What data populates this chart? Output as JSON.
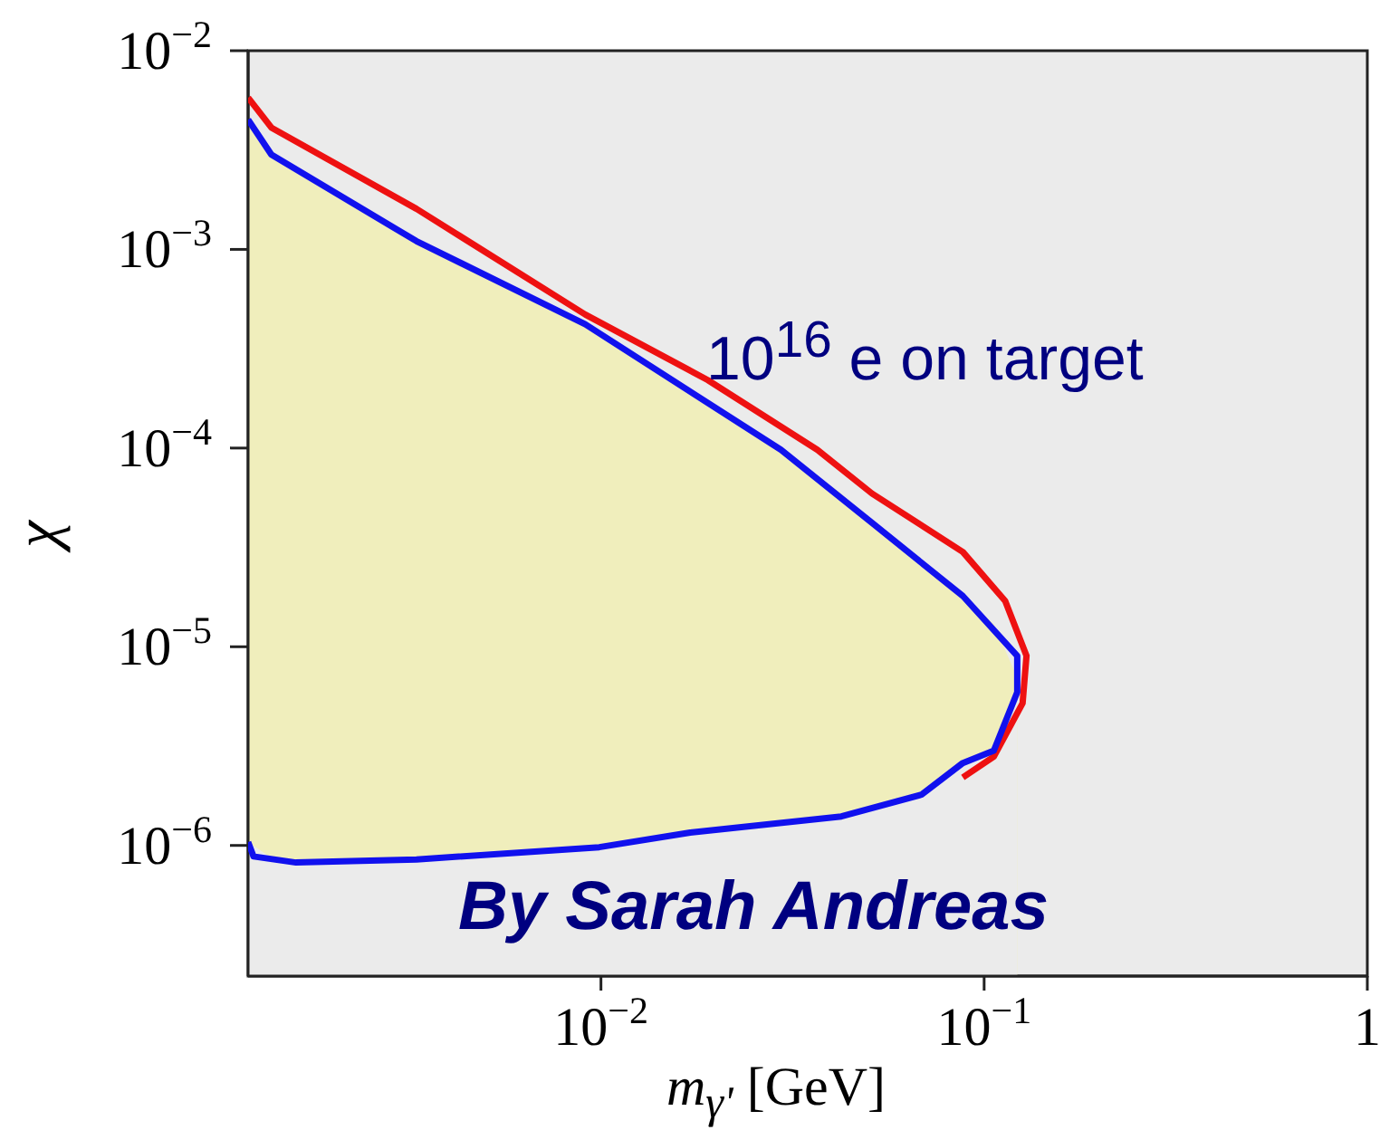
{
  "chart_data": {
    "type": "line",
    "xlabel": "m$_{γ'}$ [GeV]",
    "ylabel": "χ",
    "log": "xy",
    "marker": "none",
    "line_style": "solid",
    "xlim": [
      0.0012,
      1
    ],
    "xticks": [
      {
        "value": 0.01,
        "label": "10$^{−2}$"
      },
      {
        "value": 0.1,
        "label": "10$^{−1}$"
      },
      1
    ],
    "ylim": [
      2.2e-07,
      0.01
    ],
    "yticks": [
      {
        "value": 1e-06,
        "label": "10$^{−6}$"
      },
      {
        "value": 1e-05,
        "label": "10$^{−5}$"
      },
      {
        "value": 0.0001,
        "label": "10$^{−4}$"
      },
      {
        "value": 0.001,
        "label": "10$^{−3}$"
      },
      {
        "value": 0.01,
        "label": "10$^{−2}$"
      }
    ],
    "series": [
      {
        "type": "area",
        "color": "#f0eebc",
        "x": [
          0.0012,
          0.0014,
          0.0033,
          0.0091,
          0.017,
          0.0295,
          0.042,
          0.051,
          0.0686,
          0.088,
          0.106,
          0.122
        ],
        "values": [
          0.0045,
          0.003,
          0.0011,
          0.00042,
          0.000195,
          9.8e-05,
          6e-05,
          4.2e-05,
          2.7e-05,
          1.8e-05,
          1.3e-05,
          7e-06
        ]
      },
      {
        "type": "area",
        "color": "#ebebeb",
        "x": [
          0.0012,
          0.0014,
          0.0033,
          0.0091,
          0.017,
          0.0295,
          0.042,
          0.051,
          0.0686,
          0.088,
          0.106,
          0.122
        ],
        "values": [
          1.04e-06,
          8.5e-07,
          8.5e-07,
          9.6e-07,
          1.16e-06,
          1.3e-06,
          1.4e-06,
          1.55e-06,
          1.8e-06,
          2.6e-06,
          3e-06,
          6e-06
        ]
      },
      {
        "color": "#ee1111",
        "x": [
          0.0012,
          0.00138,
          0.0033,
          0.0091,
          0.019,
          0.0367,
          0.051,
          0.088,
          0.1135,
          0.129,
          0.126,
          0.106,
          0.088
        ],
        "values": [
          0.0058,
          0.0041,
          0.0016,
          0.00047,
          0.00022,
          9.8e-05,
          5.9e-05,
          3e-05,
          1.7e-05,
          9e-06,
          5.2e-06,
          2.8e-06,
          2.2e-06
        ]
      },
      {
        "color": "#1111ee",
        "x": [
          0.0012,
          0.00138,
          0.0033,
          0.0091,
          0.0295,
          0.051,
          0.088,
          0.122,
          0.122,
          0.106,
          0.088,
          0.0686,
          0.0424,
          0.0171,
          0.0099,
          0.0033,
          0.0016,
          0.00124,
          0.0012
        ],
        "values": [
          0.0045,
          0.003,
          0.0011,
          0.00042,
          9.8e-05,
          4.2e-05,
          1.8e-05,
          9e-06,
          5.9e-06,
          3e-06,
          2.6e-06,
          1.8e-06,
          1.4e-06,
          1.16e-06,
          9.8e-07,
          8.5e-07,
          8.2e-07,
          8.8e-07,
          1.04e-06
        ]
      }
    ],
    "annotations": [
      "10$^{16}$ e on target",
      "By Sarah Andreas"
    ]
  }
}
